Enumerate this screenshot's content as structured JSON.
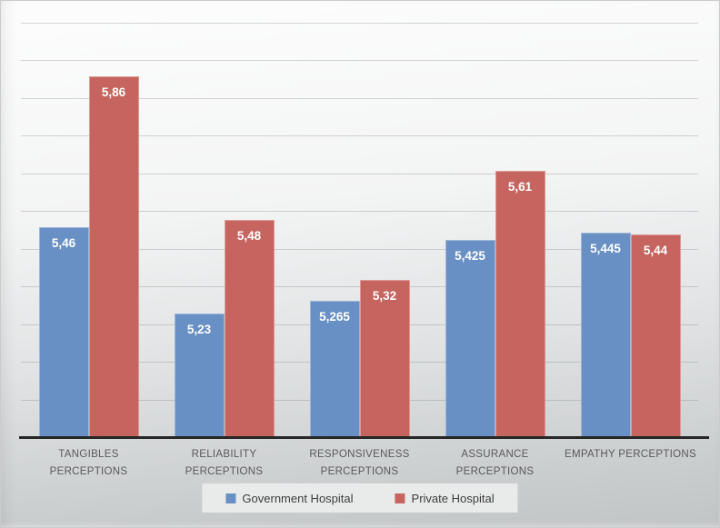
{
  "chart_data": {
    "type": "bar",
    "title": "",
    "xlabel": "",
    "ylabel": "",
    "categories": [
      "TANGIBLES PERCEPTIONS",
      "RELIABILITY PERCEPTIONS",
      "RESPONSIVENESS PERCEPTIONS",
      "ASSURANCE PERCEPTIONS",
      "EMPATHY PERCEPTIONS"
    ],
    "category_label_lines": [
      [
        "TANGIBLES",
        "PERCEPTIONS"
      ],
      [
        "RELIABILITY",
        "PERCEPTIONS"
      ],
      [
        "RESPONSIVENESS",
        "PERCEPTIONS"
      ],
      [
        "ASSURANCE",
        "PERCEPTIONS"
      ],
      [
        "EMPATHY PERCEPTIONS"
      ]
    ],
    "series": [
      {
        "name": "Government Hospital",
        "color": "#6990C4",
        "values": [
          5.46,
          5.23,
          5.265,
          5.425,
          5.445
        ],
        "data_labels": [
          "5,46",
          "5,23",
          "5,265",
          "5,425",
          "5,445"
        ]
      },
      {
        "name": "Private Hospital",
        "color": "#C6655F",
        "values": [
          5.86,
          5.48,
          5.32,
          5.61,
          5.44
        ],
        "data_labels": [
          "5,86",
          "5,48",
          "5,32",
          "5,61",
          "5,44"
        ]
      }
    ],
    "ylim": [
      4.9,
      6.0
    ],
    "y_major_unit": 0.1,
    "y_axis_labels_visible": false,
    "gridlines": true,
    "legend_position": "bottom",
    "decimal_separator": ",",
    "data_label_color": "#FFFFFF",
    "axis_line_color": "#262626",
    "category_label_color": "#595959"
  }
}
